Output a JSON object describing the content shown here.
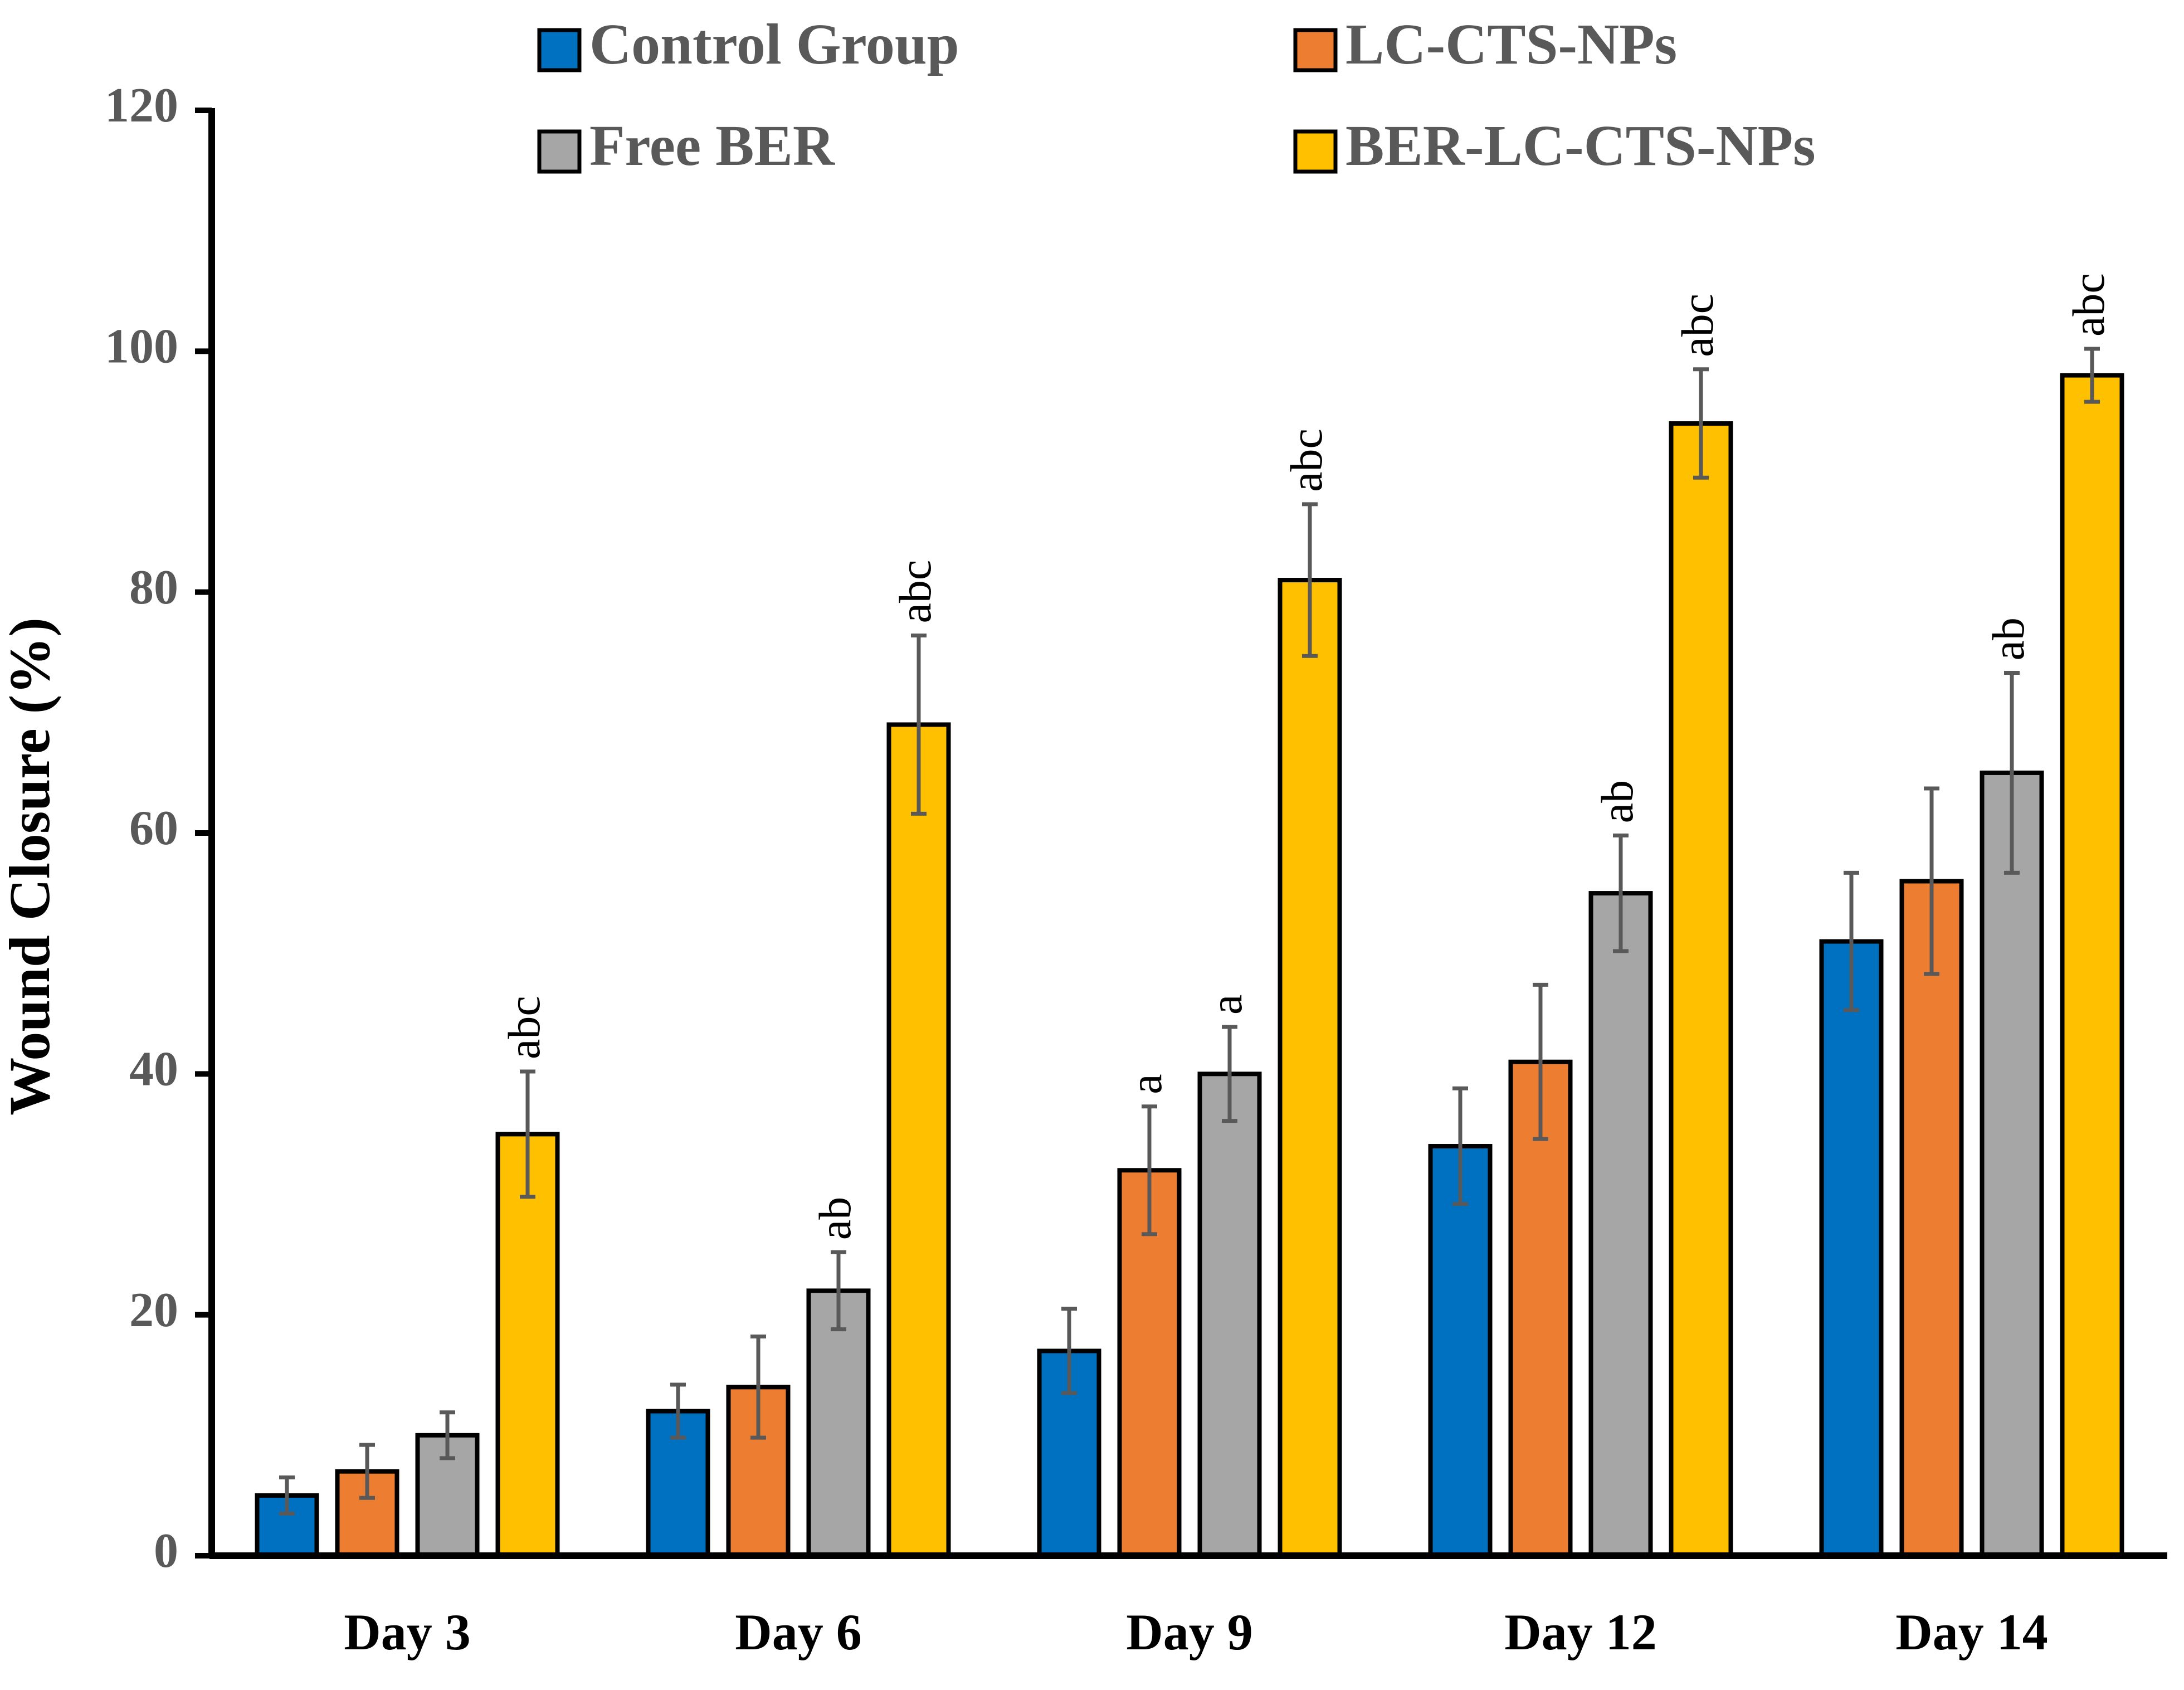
{
  "chart_data": {
    "type": "bar",
    "title": "",
    "xlabel": "",
    "ylabel": "Wound Closure (%)",
    "ylim": [
      0,
      120
    ],
    "yticks": [
      0,
      20,
      40,
      60,
      80,
      100,
      120
    ],
    "grid": false,
    "legend_position": "top",
    "categories": [
      "Day 3",
      "Day 6",
      "Day 9",
      "Day 12",
      "Day 14"
    ],
    "series": [
      {
        "name": "Control Group",
        "color": "#0070C0",
        "values": [
          5,
          12,
          17,
          34,
          51
        ],
        "errors": [
          1.5,
          2.2,
          3.5,
          4.8,
          5.7
        ],
        "labels": [
          "",
          "",
          "",
          "",
          ""
        ]
      },
      {
        "name": "LC-CTS-NPs",
        "color": "#ED7D31",
        "values": [
          7,
          14,
          32,
          41,
          56
        ],
        "errors": [
          2.2,
          4.2,
          5.3,
          6.4,
          7.7
        ],
        "labels": [
          "",
          "",
          "a",
          "",
          ""
        ]
      },
      {
        "name": "Free BER",
        "color": "#A6A6A6",
        "values": [
          10,
          22,
          40,
          55,
          65
        ],
        "errors": [
          1.9,
          3.2,
          3.9,
          4.8,
          8.3
        ],
        "labels": [
          "",
          "ab",
          "a",
          "ab",
          "ab"
        ]
      },
      {
        "name": "BER-LC-CTS-NPs",
        "color": "#FFC000",
        "values": [
          35,
          69,
          81,
          94,
          98
        ],
        "errors": [
          5.2,
          7.4,
          6.3,
          4.5,
          2.2
        ],
        "labels": [
          "abc",
          "abc",
          "abc",
          "abc",
          "abc"
        ]
      }
    ]
  }
}
